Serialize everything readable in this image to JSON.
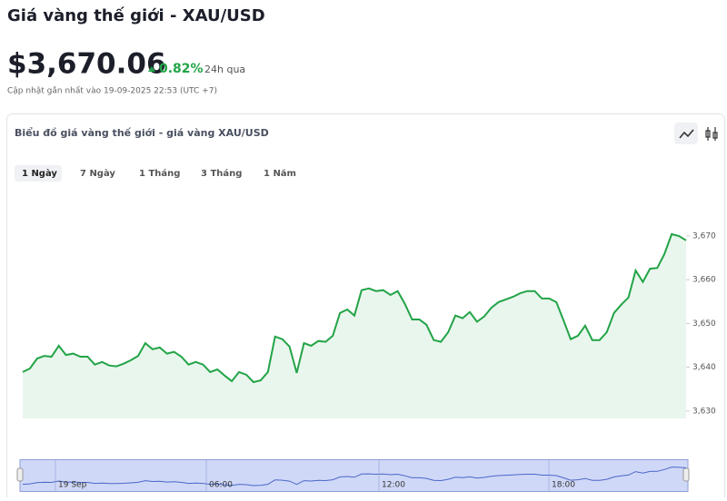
{
  "header": {
    "title": "Giá vàng thế giới - XAU/USD",
    "price": "$3,670.06",
    "change": "0.82%",
    "period": "24h qua",
    "updated": "Cập nhật gần nhất vào 19-09-2025 22:53 (UTC +7)"
  },
  "card": {
    "title": "Biểu đồ giá vàng thế giới - giá vàng XAU/USD",
    "tabs": [
      "1 Ngày",
      "7 Ngày",
      "1 Tháng",
      "3 Tháng",
      "1 Năm"
    ]
  },
  "navigator": {
    "labels": [
      "19 Sep",
      "06:00",
      "12:00",
      "18:00"
    ]
  },
  "chart_data": {
    "type": "line",
    "color": "#22a447",
    "area_color": "#e9f6ed",
    "ylim": [
      3628.3,
      3681.4
    ],
    "yticks": [
      {
        "value": 3630,
        "label": "3,630"
      },
      {
        "value": 3640,
        "label": "3,640"
      },
      {
        "value": 3650,
        "label": "3,650"
      },
      {
        "value": 3660,
        "label": "3,660"
      },
      {
        "value": 3670,
        "label": "3,670"
      }
    ],
    "values": [
      3638.9,
      3639.7,
      3642.0,
      3642.6,
      3642.4,
      3644.9,
      3642.8,
      3643.1,
      3642.4,
      3642.4,
      3640.6,
      3641.2,
      3640.4,
      3640.2,
      3640.8,
      3641.6,
      3642.6,
      3645.5,
      3644.1,
      3644.5,
      3643.1,
      3643.5,
      3642.4,
      3640.6,
      3641.2,
      3640.6,
      3638.9,
      3639.5,
      3638.1,
      3636.8,
      3638.9,
      3638.3,
      3636.6,
      3637.0,
      3638.9,
      3647.0,
      3646.4,
      3644.7,
      3638.7,
      3645.5,
      3644.9,
      3646.0,
      3645.8,
      3647.2,
      3652.4,
      3653.2,
      3651.8,
      3657.6,
      3658.0,
      3657.4,
      3657.6,
      3656.5,
      3657.4,
      3654.5,
      3650.9,
      3650.9,
      3649.7,
      3646.2,
      3645.8,
      3648.0,
      3651.8,
      3651.2,
      3652.6,
      3650.4,
      3651.6,
      3653.6,
      3654.9,
      3655.5,
      3656.1,
      3656.9,
      3657.4,
      3657.4,
      3655.7,
      3655.7,
      3654.9,
      3650.7,
      3646.4,
      3647.2,
      3649.5,
      3646.2,
      3646.2,
      3648.0,
      3652.4,
      3654.3,
      3655.9,
      3662.1,
      3659.5,
      3662.5,
      3662.7,
      3665.9,
      3670.4,
      3670.0,
      3669.0
    ]
  }
}
